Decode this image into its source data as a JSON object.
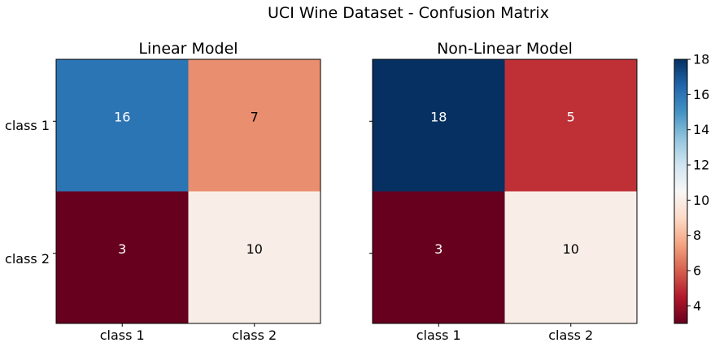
{
  "figure_title": "UCI Wine Dataset - Confusion Matrix",
  "chart_data": [
    {
      "type": "heatmap",
      "title": "Linear Model",
      "row_labels": [
        "class 1",
        "class 2"
      ],
      "col_labels": [
        "class 1",
        "class 2"
      ],
      "values": [
        [
          16,
          7
        ],
        [
          3,
          10
        ]
      ],
      "cell_labels": [
        [
          "16",
          "7"
        ],
        [
          "3",
          "10"
        ]
      ],
      "xlabel": "",
      "ylabel": ""
    },
    {
      "type": "heatmap",
      "title": "Non-Linear Model",
      "row_labels": [
        "class 1",
        "class 2"
      ],
      "col_labels": [
        "class 1",
        "class 2"
      ],
      "values": [
        [
          18,
          5
        ],
        [
          3,
          10
        ]
      ],
      "cell_labels": [
        [
          "18",
          "5"
        ],
        [
          "3",
          "10"
        ]
      ],
      "xlabel": "",
      "ylabel": ""
    }
  ],
  "colorbar": {
    "range": [
      3,
      18
    ],
    "ticks": [
      "4",
      "6",
      "8",
      "10",
      "12",
      "14",
      "16",
      "18"
    ],
    "colormap": "RdBu",
    "colormap_stops": [
      "#67001f",
      "#b2182b",
      "#d6604d",
      "#f4a582",
      "#fddbc7",
      "#f7f7f7",
      "#d1e5f0",
      "#92c5de",
      "#4393c3",
      "#2166ac",
      "#053061"
    ]
  }
}
